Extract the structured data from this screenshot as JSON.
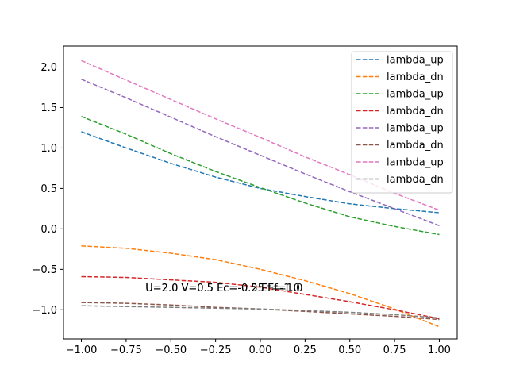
{
  "chart_data": {
    "type": "line",
    "xlim": [
      -1.1,
      1.1
    ],
    "ylim": [
      -1.36,
      2.26
    ],
    "xticks": [
      -1.0,
      -0.75,
      -0.5,
      -0.25,
      0.0,
      0.25,
      0.5,
      0.75,
      1.0
    ],
    "xtick_labels": [
      "−1.00",
      "−0.75",
      "−0.50",
      "−0.25",
      "0.00",
      "0.25",
      "0.50",
      "0.75",
      "1.00"
    ],
    "yticks": [
      -1.0,
      -0.5,
      0.0,
      0.5,
      1.0,
      1.5,
      2.0
    ],
    "ytick_labels": [
      "−1.0",
      "−0.5",
      "0.0",
      "0.5",
      "1.0",
      "1.5",
      "2.0"
    ],
    "grid": false,
    "legend_position": "top-right",
    "line_style": "dashed",
    "x": [
      -1.0,
      -0.75,
      -0.5,
      -0.25,
      0.0,
      0.25,
      0.5,
      0.75,
      1.0
    ],
    "series": [
      {
        "name": "lambda_up",
        "color": "#1f77b4",
        "values": [
          1.2,
          1.0,
          0.81,
          0.64,
          0.5,
          0.4,
          0.31,
          0.25,
          0.2
        ]
      },
      {
        "name": "lambda_dn",
        "color": "#ff7f0e",
        "values": [
          -0.21,
          -0.24,
          -0.3,
          -0.38,
          -0.5,
          -0.64,
          -0.8,
          -0.99,
          -1.21
        ]
      },
      {
        "name": "lambda_up",
        "color": "#2ca02c",
        "values": [
          1.39,
          1.17,
          0.93,
          0.71,
          0.51,
          0.32,
          0.15,
          0.03,
          -0.07
        ]
      },
      {
        "name": "lambda_dn",
        "color": "#d62728",
        "values": [
          -0.59,
          -0.6,
          -0.63,
          -0.66,
          -0.72,
          -0.81,
          -0.9,
          -1.0,
          -1.11
        ]
      },
      {
        "name": "lambda_up",
        "color": "#9467bd",
        "values": [
          1.85,
          1.62,
          1.38,
          1.14,
          0.91,
          0.68,
          0.46,
          0.25,
          0.04
        ]
      },
      {
        "name": "lambda_dn",
        "color": "#8c564b",
        "values": [
          -0.91,
          -0.92,
          -0.94,
          -0.97,
          -0.99,
          -1.02,
          -1.05,
          -1.08,
          -1.12
        ]
      },
      {
        "name": "lambda_up",
        "color": "#e377c2",
        "values": [
          2.08,
          1.84,
          1.6,
          1.36,
          1.13,
          0.89,
          0.67,
          0.44,
          0.23
        ]
      },
      {
        "name": "lambda_dn",
        "color": "#7f7f7f",
        "values": [
          -0.95,
          -0.96,
          -0.97,
          -0.98,
          -0.99,
          -1.01,
          -1.03,
          -1.06,
          -1.1
        ]
      }
    ],
    "annotations": [
      {
        "text": "U=2.0 V=0.5 Ec=-0.5 Ef=-1.0",
        "x": -0.5,
        "y": -0.72
      },
      {
        "text": "U=2.0 V=0.5 Ec=-0.25 Ef=1.0",
        "x": -0.5,
        "y": -0.72
      }
    ]
  }
}
